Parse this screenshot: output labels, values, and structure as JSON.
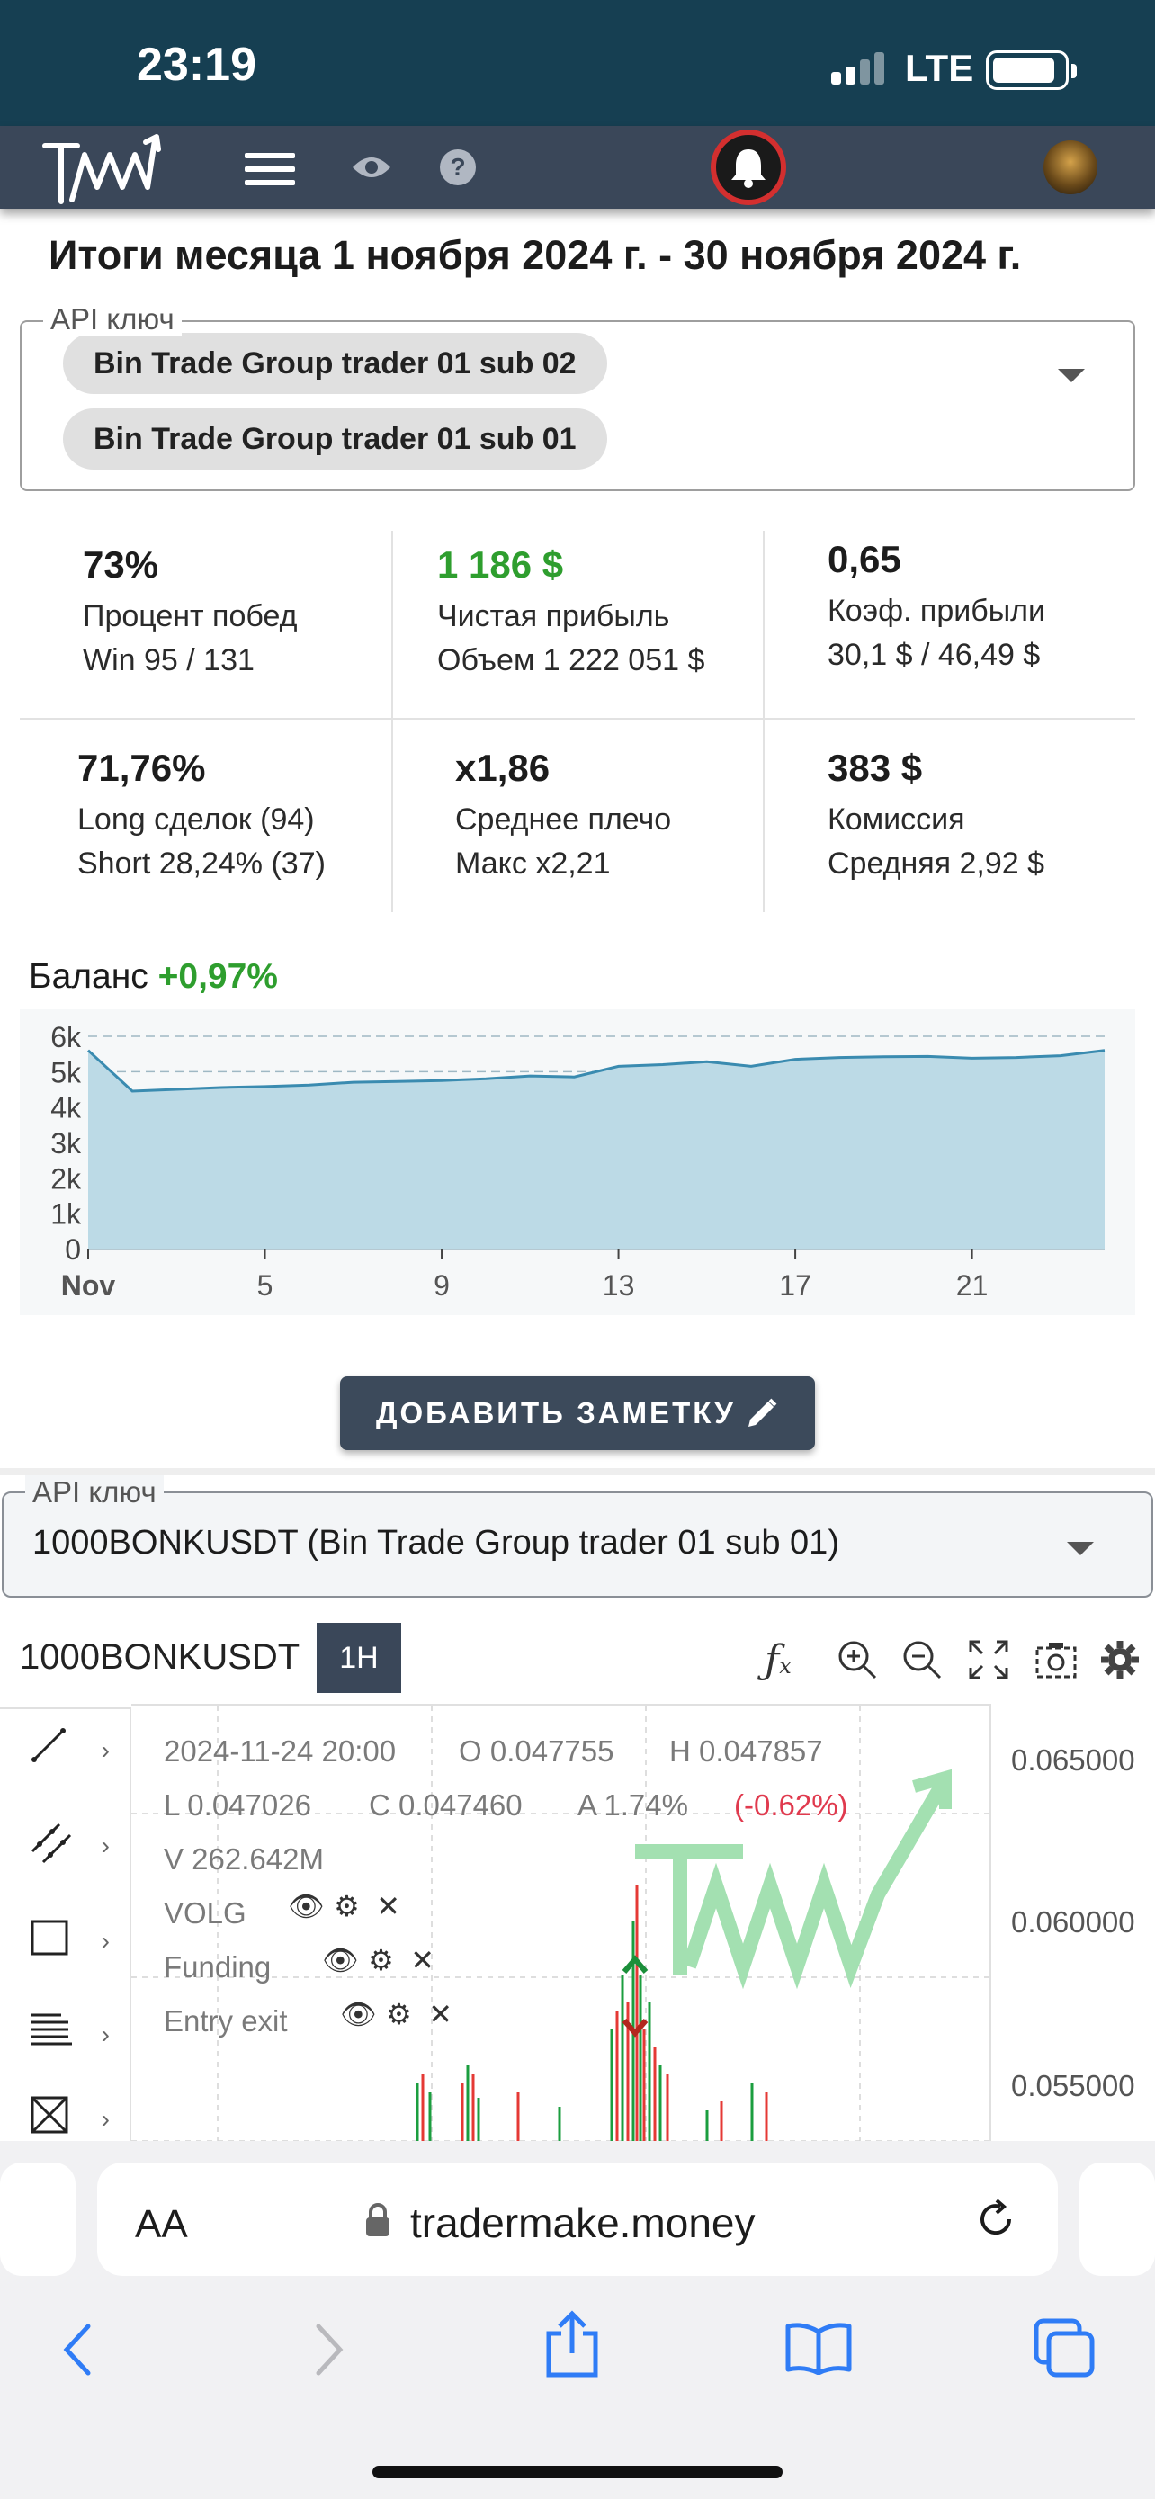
{
  "status_bar": {
    "time": "23:19",
    "network": "LTE"
  },
  "header": {
    "logo_text": "TMM",
    "icons": [
      "menu-icon",
      "eye-icon",
      "help-icon",
      "bell-icon",
      "avatar"
    ]
  },
  "page_title": "Итоги месяца 1 ноября 2024 г. - 30 ноября 2024 г.",
  "api_key_select": {
    "label": "API ключ",
    "chips": [
      "Bin Trade Group trader 01 sub 02",
      "Bin Trade Group trader 01 sub 01"
    ]
  },
  "stats": [
    {
      "value": "73%",
      "label": "Процент побед",
      "sub": "Win 95 / 131"
    },
    {
      "value": "1 186 $",
      "label": "Чистая прибыль",
      "sub": "Объем 1 222 051 $",
      "color": "#2e9e2e"
    },
    {
      "value": "0,65",
      "label": "Коэф. прибыли",
      "sub": "30,1 $ / 46,49 $"
    },
    {
      "value": "71,76%",
      "label": "Long сделок (94)",
      "sub": "Short 28,24% (37)"
    },
    {
      "value": "x1,86",
      "label": "Среднее плечо",
      "sub": "Макс x2,21"
    },
    {
      "value": "383 $",
      "label": "Комиссия",
      "sub": "Средняя 2,92 $"
    }
  ],
  "balance": {
    "label": "Баланс",
    "change": "+0,97%"
  },
  "chart_data": {
    "type": "area",
    "title": "",
    "x": [
      1,
      2,
      3,
      4,
      5,
      6,
      7,
      8,
      9,
      10,
      11,
      12,
      13,
      14,
      15,
      16,
      17,
      18,
      19,
      20,
      21,
      22,
      23,
      24
    ],
    "x_tick_labels": [
      "Nov",
      "5",
      "9",
      "13",
      "17",
      "21"
    ],
    "x_ticks": [
      1,
      5,
      9,
      13,
      17,
      21
    ],
    "y_tick_labels": [
      "0",
      "1k",
      "2k",
      "3k",
      "4k",
      "5k",
      "6k"
    ],
    "ylim": [
      0,
      6000
    ],
    "series": [
      {
        "values": [
          5600,
          4450,
          4500,
          4550,
          4580,
          4620,
          4700,
          4720,
          4750,
          4800,
          4880,
          4850,
          5150,
          5200,
          5280,
          5150,
          5350,
          5400,
          5420,
          5430,
          5380,
          5400,
          5450,
          5600
        ]
      }
    ],
    "color": "#3a8bb0",
    "fill": "#bcdae6",
    "grid": true
  },
  "add_note_button": "ДОБАВИТЬ ЗАМЕТКУ",
  "api_key_select_2": {
    "label": "API ключ",
    "value": "1000BONKUSDT (Bin Trade Group trader 01 sub 01)"
  },
  "trading_chart": {
    "symbol": "1000BONKUSDT",
    "timeframe": "1H",
    "date": "2024-11-24 20:00",
    "open": "O 0.047755",
    "high": "H 0.047857",
    "low": "L 0.047026",
    "close": "C 0.047460",
    "amplitude": "A 1.74%",
    "change": "(-0.62%)",
    "volume": "V 262.642M",
    "indicators": [
      "VOLG",
      "Funding",
      "Entry exit"
    ],
    "price_axis": [
      "0.065000",
      "0.060000",
      "0.055000"
    ],
    "toolbar_icons": [
      "function-icon",
      "zoom-in-icon",
      "zoom-out-icon",
      "fullscreen-icon",
      "screenshot-icon",
      "settings-icon"
    ],
    "drawing_tools": [
      "line-tool-icon",
      "parallel-channel-icon",
      "rectangle-icon",
      "fib-levels-icon",
      "measure-icon"
    ]
  },
  "browser": {
    "aa": "AA",
    "url": "tradermake.money"
  }
}
